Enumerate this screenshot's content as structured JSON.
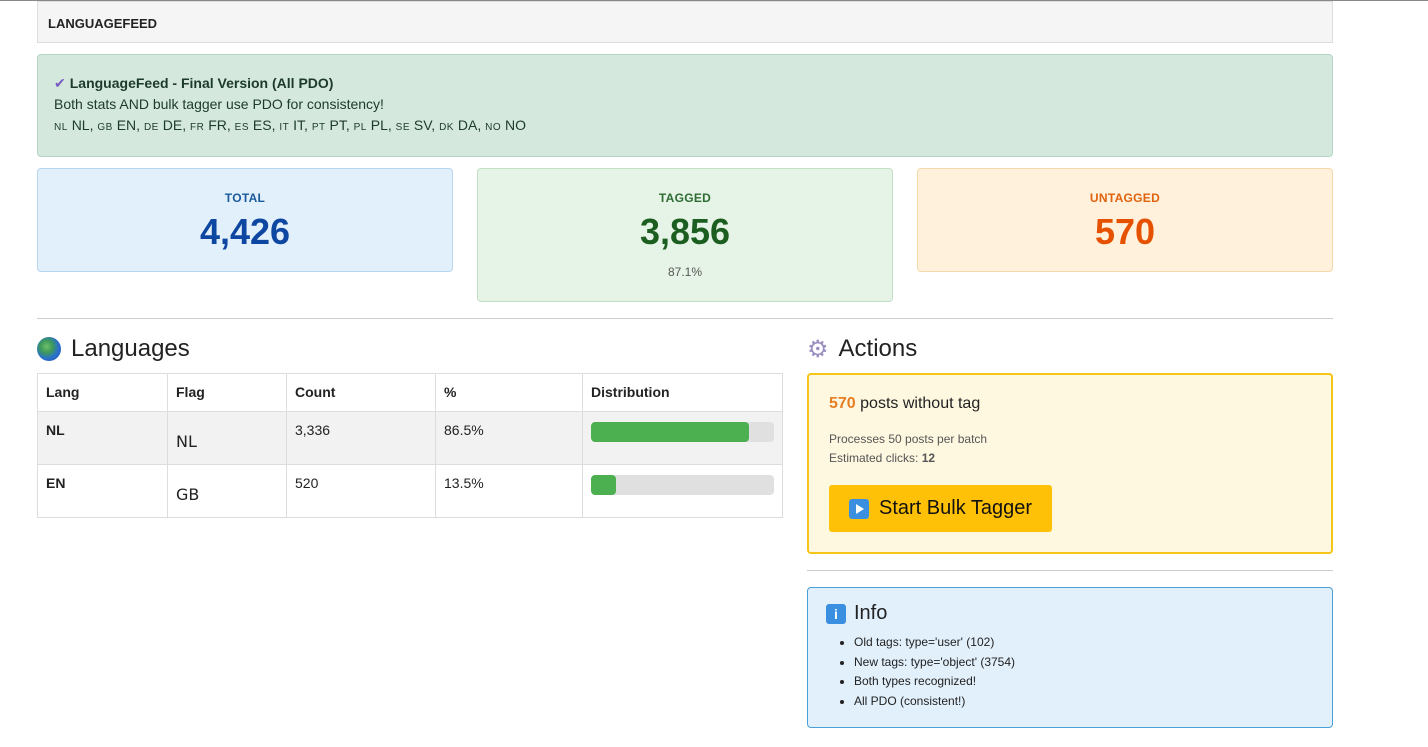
{
  "header": {
    "title": "LANGUAGEFEED"
  },
  "notice": {
    "icon": "check-icon",
    "title": "LanguageFeed - Final Version (All PDO)",
    "line": "Both stats AND bulk tagger use PDO for consistency!",
    "languages": [
      {
        "code": "nl",
        "label": "NL"
      },
      {
        "code": "gb",
        "label": "EN"
      },
      {
        "code": "de",
        "label": "DE"
      },
      {
        "code": "fr",
        "label": "FR"
      },
      {
        "code": "es",
        "label": "ES"
      },
      {
        "code": "it",
        "label": "IT"
      },
      {
        "code": "pt",
        "label": "PT"
      },
      {
        "code": "pl",
        "label": "PL"
      },
      {
        "code": "se",
        "label": "SV"
      },
      {
        "code": "dk",
        "label": "DA"
      },
      {
        "code": "no",
        "label": "NO"
      }
    ]
  },
  "stats": {
    "total": {
      "label": "TOTAL",
      "value": "4,426"
    },
    "tagged": {
      "label": "TAGGED",
      "value": "3,856",
      "percent": "87.1%"
    },
    "untagged": {
      "label": "UNTAGGED",
      "value": "570"
    }
  },
  "languages": {
    "title": "Languages",
    "columns": [
      "Lang",
      "Flag",
      "Count",
      "%",
      "Distribution"
    ],
    "rows": [
      {
        "lang": "NL",
        "flag": "NL",
        "count": "3,336",
        "percent": "86.5%",
        "distribution": 86.5
      },
      {
        "lang": "EN",
        "flag": "GB",
        "count": "520",
        "percent": "13.5%",
        "distribution": 13.5
      }
    ]
  },
  "actions": {
    "title": "Actions",
    "count": "570",
    "count_text": "posts without tag",
    "batch_text": "Processes 50 posts per batch",
    "clicks_label": "Estimated clicks:",
    "clicks": "12",
    "button": "Start Bulk Tagger"
  },
  "info": {
    "title": "Info",
    "items": [
      "Old tags: type='user' (102)",
      "New tags: type='object' (3754)",
      "Both types recognized!",
      "All PDO (consistent!)"
    ]
  },
  "colors": {
    "total": "#0d47a1",
    "tagged": "#1b5e20",
    "untagged": "#e65100",
    "bar": "#4caf50",
    "button": "#ffc107"
  }
}
